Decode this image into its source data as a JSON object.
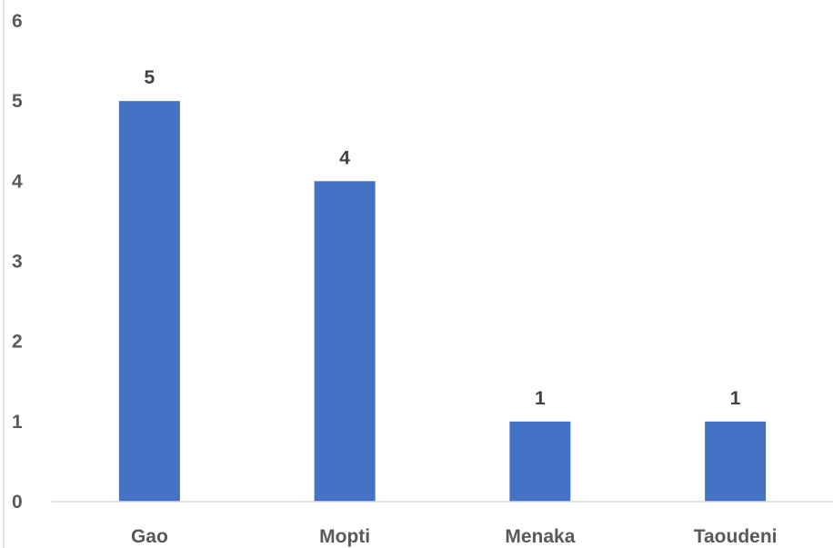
{
  "chart_data": {
    "type": "bar",
    "title": "",
    "xlabel": "",
    "ylabel": "",
    "categories": [
      "Gao",
      "Mopti",
      "Menaka",
      "Taoudeni"
    ],
    "values": [
      5,
      4,
      1,
      1
    ],
    "data_labels": [
      "5",
      "4",
      "1",
      "1"
    ],
    "ylim": [
      0,
      6
    ],
    "yticks": [
      "0",
      "1",
      "2",
      "3",
      "4",
      "5",
      "6"
    ],
    "grid": false,
    "legend": "none",
    "colors": {
      "bar": "#4472C4",
      "axis": "#D9D9D9"
    }
  }
}
